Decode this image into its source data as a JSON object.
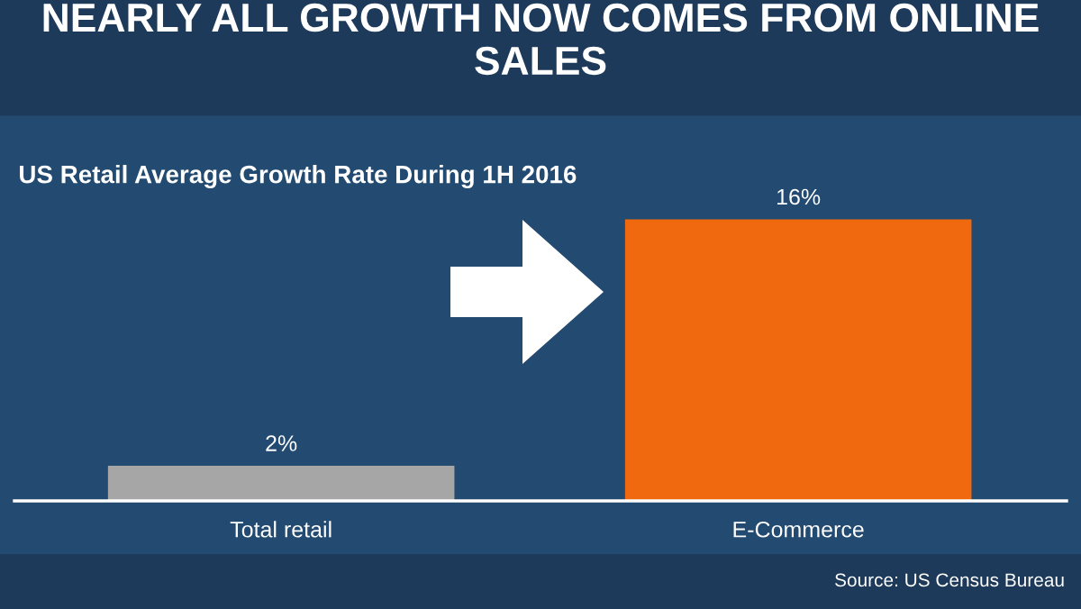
{
  "chart_data": {
    "type": "bar",
    "title": "NEARLY ALL GROWTH NOW COMES FROM ONLINE SALES",
    "subtitle": "US Retail Average Growth Rate During 1H 2016",
    "categories": [
      "Total retail",
      "E-Commerce"
    ],
    "values": [
      2,
      16
    ],
    "colors": [
      "#a6a6a6",
      "#f0690f"
    ],
    "value_labels": [
      "2%",
      "16%"
    ],
    "annotations": [
      "Source: US Census Bureau"
    ],
    "grid": false,
    "legend": false
  }
}
